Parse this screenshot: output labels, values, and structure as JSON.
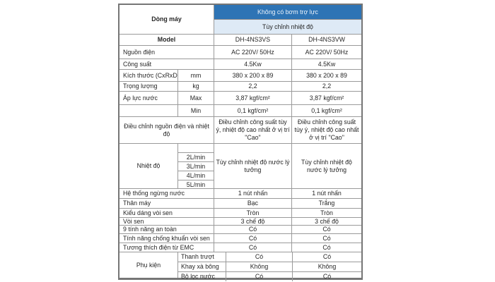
{
  "colors": {
    "header_blue": "#2E74B5",
    "header_light_blue": "#DEEAF6",
    "header_text": "#EAF2FB",
    "body_text": "#262626",
    "border_gray": "#9A9A9A"
  },
  "header": {
    "series_label": "Dòng máy",
    "pump_type": "Không có bơm trợ lực",
    "temp_mode": "Tùy chỉnh nhiệt độ",
    "model_label": "Model",
    "model_vs": "DH-4NS3VS",
    "model_vw": "DH-4NS3VW"
  },
  "rows": {
    "power_source": {
      "label": "Nguồn điện",
      "vs": "AC 220V/ 50Hz",
      "vw": "AC 220V/ 50Hz"
    },
    "capacity": {
      "label": "Công suất",
      "vs": "4.5Kw",
      "vw": "4.5Kw"
    },
    "dimensions": {
      "label": "Kích thước (CxRxD)",
      "unit": "mm",
      "vs": "380 x 200 x 89",
      "vw": "380 x 200 x 89"
    },
    "weight": {
      "label": "Trọng lượng",
      "unit": "kg",
      "vs": "2,2",
      "vw": "2,2"
    },
    "pressure_max": {
      "label": "Áp lực nước",
      "unit": "Max",
      "vs": "3,87 kgf/cm²",
      "vw": "3,87 kgf/cm²"
    },
    "pressure_min": {
      "label": "",
      "unit": "Min",
      "vs": "0,1 kgf/cm²",
      "vw": "0,1 kgf/cm²"
    },
    "power_temp_adjust": {
      "label": "Điều chỉnh nguồn điện và nhiệt độ",
      "vs": "Điều chỉnh công suất tùy ý, nhiệt độ cao nhất ở vị trí \"Cao\"",
      "vw": "Điều chỉnh công suất tùy ý, nhiệt độ cao nhất ở vị trí \"Cao\""
    },
    "temperature": {
      "label": "Nhiệt độ",
      "flow_rates": [
        "",
        "2L/min",
        "3L/min",
        "4L/min",
        "5L/min"
      ],
      "vs": "Tùy chỉnh nhiệt độ nước lý tưởng",
      "vw": "Tùy chỉnh nhiệt độ nước lý tưởng"
    },
    "water_stop": {
      "label": "Hệ thống ngừng nước",
      "vs": "1 nút nhấn",
      "vw": "1 nút nhấn"
    },
    "body_color": {
      "label": "Thân máy",
      "vs": "Bạc",
      "vw": "Trắng"
    },
    "shower_shape": {
      "label": "Kiểu dáng vòi sen",
      "vs": "Tròn",
      "vw": "Tròn"
    },
    "shower_head": {
      "label": "Vòi sen",
      "vs": "3 chế độ",
      "vw": "3 chế độ"
    },
    "safety_features": {
      "label": "9 tính năng an toàn",
      "vs": "Có",
      "vw": "Có"
    },
    "antibacterial": {
      "label": "Tính năng chống khuẩn vòi sen",
      "vs": "Có",
      "vw": "Có"
    },
    "emc": {
      "label": "Tương thích điện từ EMC",
      "vs": "Có",
      "vw": "Có"
    },
    "accessories": {
      "label": "Phụ kiện",
      "items": [
        {
          "name": "Thanh trượt",
          "vs": "Có",
          "vw": "Có"
        },
        {
          "name": "Khay xà bông",
          "vs": "Không",
          "vw": "Không"
        },
        {
          "name": "Bộ lọc nước",
          "vs": "Có",
          "vw": "Có"
        }
      ]
    }
  }
}
